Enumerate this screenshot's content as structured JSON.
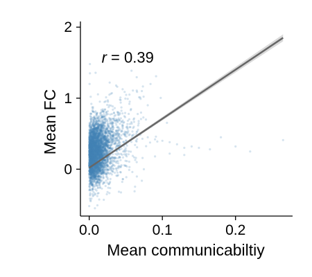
{
  "chart_data": {
    "type": "scatter",
    "title": "",
    "xlabel": "Mean communicabiltiy",
    "ylabel": "Mean FC",
    "xlim": [
      -0.012,
      0.278
    ],
    "ylim": [
      -0.66,
      2.08
    ],
    "x_ticks": [
      0.0,
      0.1,
      0.2
    ],
    "x_tick_labels": [
      "0.0",
      "0.1",
      "0.2"
    ],
    "y_ticks": [
      0,
      1,
      2
    ],
    "y_tick_labels": [
      "0",
      "1",
      "2"
    ],
    "annotation": {
      "r_symbol": "r",
      "r_text": " = 0.39",
      "x": 0.017,
      "y": 1.5
    },
    "regression_line": {
      "x": [
        0.0,
        0.265
      ],
      "y": [
        0.02,
        1.85
      ]
    },
    "point_color": "#4682b4",
    "line_color": "#666666",
    "ci_color": "#d0d0d0",
    "grid": false,
    "legend": "none",
    "series": [
      {
        "points": [
          [
            0.001,
            1.48
          ],
          [
            0.001,
            1.35
          ],
          [
            0.0005,
            1.2
          ],
          [
            0.002,
            1.02
          ],
          [
            0.003,
            0.92
          ],
          [
            0.005,
            0.85
          ],
          [
            0.01,
            0.78
          ],
          [
            0.02,
            0.62
          ],
          [
            0.03,
            0.55
          ],
          [
            0.04,
            0.48
          ],
          [
            0.05,
            0.52
          ],
          [
            0.06,
            0.58
          ],
          [
            0.07,
            0.5
          ],
          [
            0.08,
            0.45
          ],
          [
            0.09,
            0.42
          ],
          [
            0.1,
            0.4
          ],
          [
            0.11,
            0.38
          ],
          [
            0.12,
            0.35
          ],
          [
            0.13,
            0.3
          ],
          [
            0.14,
            0.32
          ],
          [
            0.15,
            0.3
          ],
          [
            0.165,
            0.28
          ],
          [
            0.18,
            0.45
          ],
          [
            0.2,
            0.32
          ],
          [
            0.22,
            0.25
          ],
          [
            0.265,
            0.41
          ],
          [
            0.072,
            1.1
          ],
          [
            0.055,
            1.05
          ],
          [
            0.042,
            0.98
          ],
          [
            0.08,
            0.9
          ],
          [
            0.0,
            -0.52
          ],
          [
            0.002,
            -0.45
          ],
          [
            0.005,
            -0.38
          ],
          [
            0.01,
            -0.3
          ],
          [
            0.015,
            -0.25
          ],
          [
            0.025,
            -0.12
          ],
          [
            0.035,
            -0.05
          ],
          [
            0.05,
            0.05
          ],
          [
            0.065,
            0.1
          ],
          [
            0.09,
            0.18
          ],
          [
            0.11,
            0.22
          ],
          [
            0.13,
            0.2
          ],
          [
            0.0,
            0.42
          ],
          [
            0.001,
            0.3
          ],
          [
            0.003,
            0.15
          ],
          [
            0.006,
            0.05
          ],
          [
            0.008,
            -0.1
          ],
          [
            0.012,
            0.2
          ],
          [
            0.018,
            0.35
          ],
          [
            0.028,
            0.3
          ]
        ]
      }
    ]
  }
}
